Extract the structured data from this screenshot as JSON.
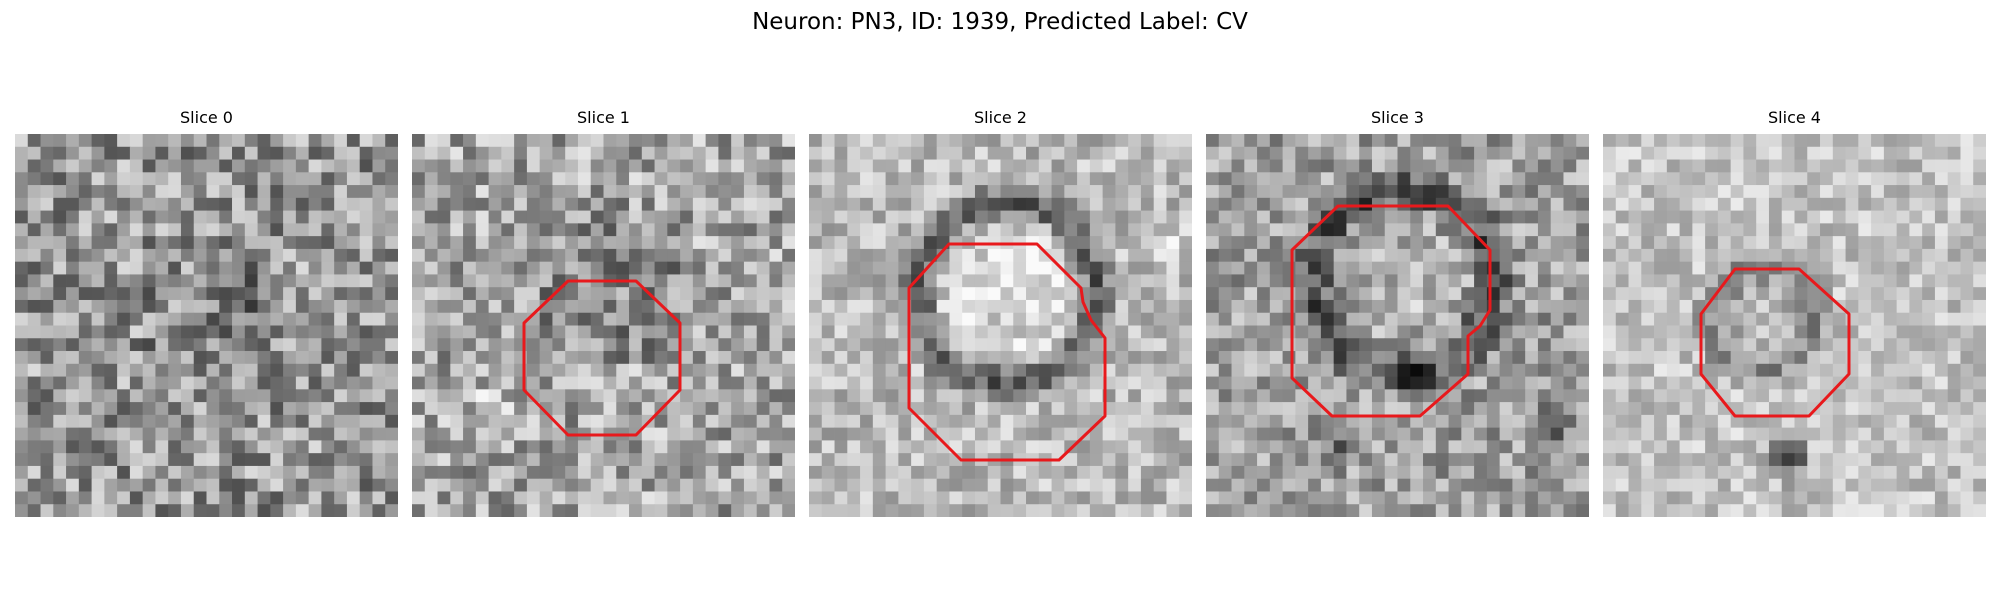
{
  "figure": {
    "title": "Neuron: PN3, ID: 1939, Predicted Label: CV"
  },
  "panels": [
    {
      "title": "Slice 0",
      "has_contour": false
    },
    {
      "title": "Slice 1",
      "has_contour": true
    },
    {
      "title": "Slice 2",
      "has_contour": true
    },
    {
      "title": "Slice 3",
      "has_contour": true
    },
    {
      "title": "Slice 4",
      "has_contour": true
    }
  ],
  "colors": {
    "contour": "#e8191c",
    "background": "#ffffff"
  }
}
